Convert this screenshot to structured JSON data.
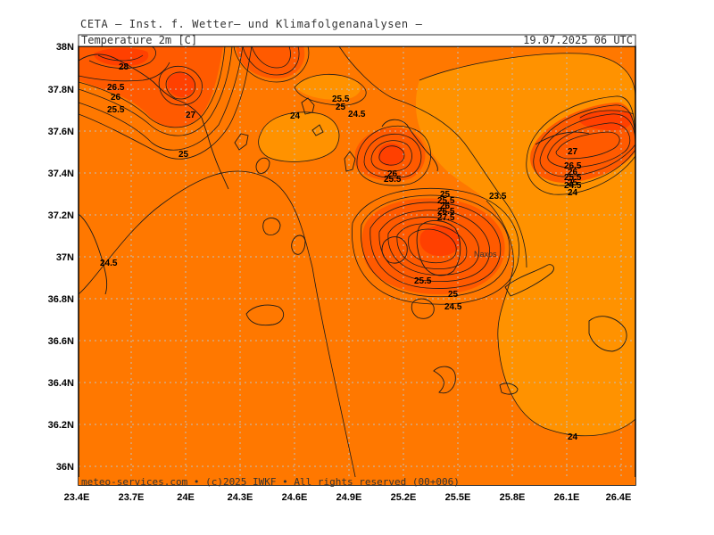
{
  "header": {
    "title": "CETA – Inst. f. Wetter– und Klimafolgenanalysen –",
    "parameter": "Temperature 2m [C]",
    "valid_time": "19.07.2025 06 UTC"
  },
  "footer": {
    "credit": "meteo-services.com • (c)2025 IWKF • All rights reserved (00+006)"
  },
  "map": {
    "lon_ticks": [
      "23.4E",
      "23.7E",
      "24E",
      "24.3E",
      "24.6E",
      "24.9E",
      "25.2E",
      "25.5E",
      "25.8E",
      "26.1E",
      "26.4E"
    ],
    "lat_ticks": [
      "38N",
      "37.8N",
      "37.6N",
      "37.4N",
      "37.2N",
      "37N",
      "36.8N",
      "36.6N",
      "36.4N",
      "36.2N",
      "36N"
    ],
    "place_labels": [
      "Naxos"
    ],
    "isotherm_labels": [
      "28",
      "26.5",
      "26",
      "25.5",
      "27",
      "25",
      "24",
      "25.5",
      "25",
      "24.5",
      "26",
      "25.5",
      "23.5",
      "25",
      "25.5",
      "26",
      "26.5",
      "27.5",
      "25.5",
      "25",
      "24.5",
      "27",
      "26.5",
      "26",
      "25.5",
      "25",
      "24.5",
      "24",
      "24.5",
      "24"
    ],
    "colors": {
      "light_orange": "#ff9200",
      "orange": "#ff7800",
      "dark_orange": "#ff5a00",
      "red_orange": "#ff4000",
      "grid": "#bfbfbf",
      "contour": "#1a1a1a"
    }
  }
}
